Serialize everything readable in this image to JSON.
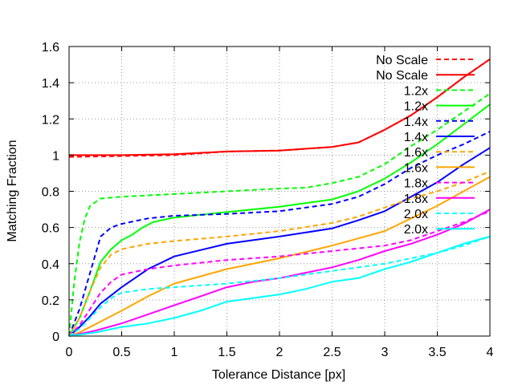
{
  "chart_data": {
    "type": "line",
    "title": "",
    "xlabel": "Tolerance Distance [px]",
    "ylabel": "Matching Fraction",
    "xlim": [
      0,
      4
    ],
    "ylim": [
      0,
      1.6
    ],
    "grid": true,
    "legend_position": "top-right",
    "x_ticks": [
      0,
      0.5,
      1,
      1.5,
      2,
      2.5,
      3,
      3.5,
      4
    ],
    "x_tick_labels": [
      "0",
      "0.5",
      "1",
      "1.5",
      "2",
      "2.5",
      "3",
      "3.5",
      "4"
    ],
    "y_ticks": [
      0,
      0.2,
      0.4,
      0.6,
      0.8,
      1,
      1.2,
      1.4,
      1.6
    ],
    "y_tick_labels": [
      "0",
      "0.2",
      "0.4",
      "0.6",
      "0.8",
      "1",
      "1.2",
      "1.4",
      "1.6"
    ],
    "series": [
      {
        "name": "No Scale",
        "color": "#ff0000",
        "dash": true,
        "x": [
          0,
          0.5,
          1,
          1.5,
          2,
          2.5,
          2.75,
          3,
          3.25,
          3.5,
          3.75,
          4
        ],
        "y": [
          0.99,
          0.995,
          1.0,
          1.02,
          1.025,
          1.045,
          1.07,
          1.14,
          1.22,
          1.32,
          1.43,
          1.53
        ]
      },
      {
        "name": "No Scale",
        "color": "#ff0000",
        "dash": false,
        "x": [
          0,
          0.5,
          1,
          1.5,
          2,
          2.5,
          2.75,
          3,
          3.25,
          3.5,
          3.75,
          4
        ],
        "y": [
          1.0,
          1.0,
          1.005,
          1.02,
          1.025,
          1.045,
          1.07,
          1.14,
          1.22,
          1.32,
          1.43,
          1.53
        ]
      },
      {
        "name": "1.2x",
        "color": "#00ff00",
        "dash": true,
        "x": [
          0,
          0.05,
          0.1,
          0.15,
          0.2,
          0.3,
          0.5,
          1,
          1.5,
          2,
          2.25,
          2.5,
          2.75,
          3,
          3.25,
          3.5,
          3.75,
          4
        ],
        "y": [
          0,
          0.3,
          0.52,
          0.65,
          0.72,
          0.76,
          0.77,
          0.785,
          0.8,
          0.815,
          0.82,
          0.845,
          0.88,
          0.95,
          1.05,
          1.14,
          1.24,
          1.34
        ]
      },
      {
        "name": "1.2x",
        "color": "#00ff00",
        "dash": false,
        "x": [
          0,
          0.1,
          0.2,
          0.3,
          0.4,
          0.5,
          0.6,
          0.7,
          0.8,
          1,
          1.5,
          2,
          2.5,
          2.75,
          3,
          3.25,
          3.5,
          3.75,
          4
        ],
        "y": [
          0,
          0.1,
          0.25,
          0.41,
          0.48,
          0.53,
          0.56,
          0.6,
          0.63,
          0.655,
          0.685,
          0.715,
          0.755,
          0.8,
          0.87,
          0.96,
          1.06,
          1.17,
          1.28
        ]
      },
      {
        "name": "1.4x",
        "color": "#0000ff",
        "dash": true,
        "x": [
          0,
          0.1,
          0.2,
          0.3,
          0.4,
          0.5,
          0.75,
          1,
          1.5,
          2,
          2.5,
          2.75,
          3,
          3.25,
          3.5,
          3.75,
          4
        ],
        "y": [
          0,
          0.15,
          0.35,
          0.55,
          0.6,
          0.62,
          0.65,
          0.665,
          0.675,
          0.69,
          0.73,
          0.77,
          0.84,
          0.93,
          1.0,
          1.06,
          1.13
        ]
      },
      {
        "name": "1.4x",
        "color": "#0000ff",
        "dash": false,
        "x": [
          0,
          0.1,
          0.2,
          0.3,
          0.5,
          0.75,
          1,
          1.5,
          2,
          2.5,
          2.75,
          3,
          3.25,
          3.5,
          3.75,
          4
        ],
        "y": [
          0,
          0.05,
          0.11,
          0.18,
          0.27,
          0.37,
          0.44,
          0.51,
          0.55,
          0.595,
          0.64,
          0.69,
          0.77,
          0.85,
          0.95,
          1.04
        ]
      },
      {
        "name": "1.6x",
        "color": "#ffa500",
        "dash": true,
        "x": [
          0,
          0.1,
          0.2,
          0.3,
          0.4,
          0.5,
          0.75,
          1,
          1.5,
          2,
          2.5,
          2.75,
          3,
          3.25,
          3.5,
          3.75,
          4
        ],
        "y": [
          0,
          0.1,
          0.25,
          0.38,
          0.45,
          0.48,
          0.51,
          0.525,
          0.55,
          0.58,
          0.625,
          0.66,
          0.71,
          0.76,
          0.8,
          0.85,
          0.91
        ]
      },
      {
        "name": "1.6x",
        "color": "#ffa500",
        "dash": false,
        "x": [
          0,
          0.1,
          0.2,
          0.3,
          0.5,
          0.75,
          1,
          1.25,
          1.5,
          2,
          2.5,
          2.75,
          3,
          3.25,
          3.5,
          3.75,
          4
        ],
        "y": [
          0,
          0.02,
          0.05,
          0.08,
          0.14,
          0.22,
          0.29,
          0.33,
          0.37,
          0.43,
          0.5,
          0.54,
          0.58,
          0.65,
          0.72,
          0.8,
          0.88
        ]
      },
      {
        "name": "1.8x",
        "color": "#ff00ff",
        "dash": true,
        "x": [
          0,
          0.1,
          0.2,
          0.3,
          0.4,
          0.5,
          0.75,
          1,
          1.5,
          2,
          2.5,
          3,
          3.25,
          3.5,
          3.75,
          4
        ],
        "y": [
          0,
          0.06,
          0.15,
          0.24,
          0.3,
          0.34,
          0.37,
          0.39,
          0.42,
          0.44,
          0.47,
          0.5,
          0.53,
          0.58,
          0.63,
          0.69
        ]
      },
      {
        "name": "1.8x",
        "color": "#ff00ff",
        "dash": false,
        "x": [
          0,
          0.25,
          0.5,
          0.75,
          1,
          1.25,
          1.5,
          1.75,
          2,
          2.25,
          2.5,
          2.75,
          3,
          3.25,
          3.5,
          3.75,
          4
        ],
        "y": [
          0,
          0.03,
          0.07,
          0.12,
          0.17,
          0.22,
          0.27,
          0.3,
          0.32,
          0.35,
          0.38,
          0.42,
          0.47,
          0.51,
          0.56,
          0.62,
          0.7
        ]
      },
      {
        "name": "2.0x",
        "color": "#00ffff",
        "dash": true,
        "x": [
          0,
          0.1,
          0.2,
          0.3,
          0.4,
          0.5,
          0.75,
          1,
          1.5,
          2,
          2.5,
          3,
          3.25,
          3.5,
          3.75,
          4
        ],
        "y": [
          0,
          0.04,
          0.1,
          0.16,
          0.21,
          0.24,
          0.26,
          0.27,
          0.29,
          0.32,
          0.36,
          0.4,
          0.43,
          0.46,
          0.5,
          0.55
        ]
      },
      {
        "name": "2.0x",
        "color": "#00ffff",
        "dash": false,
        "x": [
          0,
          0.25,
          0.5,
          0.75,
          1,
          1.25,
          1.5,
          1.75,
          2,
          2.25,
          2.5,
          2.75,
          3,
          3.25,
          3.5,
          3.75,
          4
        ],
        "y": [
          0,
          0.02,
          0.05,
          0.07,
          0.1,
          0.14,
          0.19,
          0.21,
          0.23,
          0.26,
          0.3,
          0.32,
          0.37,
          0.41,
          0.46,
          0.51,
          0.55
        ]
      }
    ]
  }
}
